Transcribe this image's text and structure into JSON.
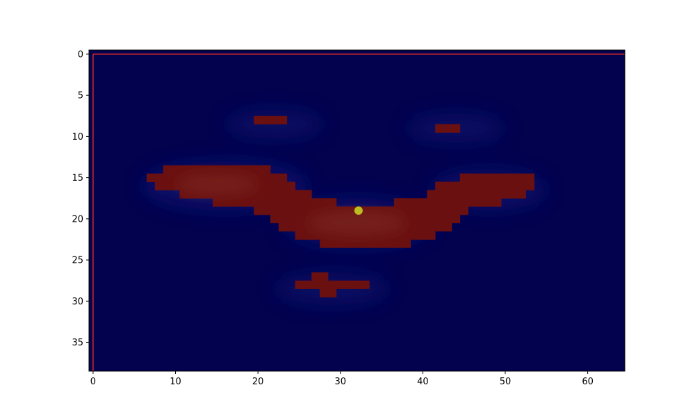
{
  "chart_data": {
    "type": "heatmap",
    "title": "",
    "xlabel": "",
    "ylabel": "",
    "xlim": [
      -0.5,
      64.5
    ],
    "ylim": [
      38.5,
      -0.5
    ],
    "y_axis_inverted": true,
    "grid": false,
    "x_ticks": [
      {
        "value": 0,
        "label": "0"
      },
      {
        "value": 10,
        "label": "10"
      },
      {
        "value": 20,
        "label": "20"
      },
      {
        "value": 30,
        "label": "30"
      },
      {
        "value": 40,
        "label": "40"
      },
      {
        "value": 50,
        "label": "50"
      },
      {
        "value": 60,
        "label": "60"
      }
    ],
    "y_ticks": [
      {
        "value": 0,
        "label": "0"
      },
      {
        "value": 5,
        "label": "5"
      },
      {
        "value": 10,
        "label": "10"
      },
      {
        "value": 15,
        "label": "15"
      },
      {
        "value": 20,
        "label": "20"
      },
      {
        "value": 25,
        "label": "25"
      },
      {
        "value": 30,
        "label": "30"
      },
      {
        "value": 35,
        "label": "35"
      }
    ],
    "background_color": "#02024f",
    "glow_color": "#1a2a9a",
    "mask_color": "#6b1010",
    "mask_runs": [
      {
        "row": 8,
        "x0": 20,
        "x1": 23
      },
      {
        "row": 9,
        "x0": 42,
        "x1": 44
      },
      {
        "row": 14,
        "x0": 9,
        "x1": 21
      },
      {
        "row": 15,
        "x0": 7,
        "x1": 23
      },
      {
        "row": 15,
        "x0": 45,
        "x1": 53
      },
      {
        "row": 16,
        "x0": 8,
        "x1": 24
      },
      {
        "row": 16,
        "x0": 42,
        "x1": 53
      },
      {
        "row": 17,
        "x0": 11,
        "x1": 26
      },
      {
        "row": 17,
        "x0": 41,
        "x1": 52
      },
      {
        "row": 18,
        "x0": 15,
        "x1": 29
      },
      {
        "row": 18,
        "x0": 37,
        "x1": 49
      },
      {
        "row": 19,
        "x0": 20,
        "x1": 45
      },
      {
        "row": 20,
        "x0": 22,
        "x1": 44
      },
      {
        "row": 21,
        "x0": 23,
        "x1": 43
      },
      {
        "row": 22,
        "x0": 25,
        "x1": 41
      },
      {
        "row": 23,
        "x0": 28,
        "x1": 38
      },
      {
        "row": 27,
        "x0": 27,
        "x1": 28
      },
      {
        "row": 28,
        "x0": 25,
        "x1": 33
      },
      {
        "row": 29,
        "x0": 28,
        "x1": 29
      }
    ],
    "glow_blobs": [
      {
        "cx": 16,
        "cy": 16,
        "rx": 10,
        "ry": 3,
        "opacity": 0.35
      },
      {
        "cx": 32,
        "cy": 20.5,
        "rx": 9,
        "ry": 3,
        "opacity": 0.35
      },
      {
        "cx": 48,
        "cy": 16.5,
        "rx": 7,
        "ry": 2.5,
        "opacity": 0.3
      },
      {
        "cx": 22,
        "cy": 8.5,
        "rx": 6,
        "ry": 1.8,
        "opacity": 0.25
      },
      {
        "cx": 44,
        "cy": 9,
        "rx": 6,
        "ry": 1.8,
        "opacity": 0.25
      },
      {
        "cx": 29,
        "cy": 28.5,
        "rx": 7,
        "ry": 2,
        "opacity": 0.25
      }
    ],
    "highlight_blobs": [
      {
        "cx": 15,
        "cy": 15.8,
        "rx": 5,
        "ry": 1.2
      },
      {
        "cx": 32,
        "cy": 20.5,
        "rx": 6,
        "ry": 1.5
      }
    ],
    "border_line": {
      "color": "#d62728",
      "x": 0,
      "y": 0
    },
    "point": {
      "x": 32.2,
      "y": 19,
      "color": "#bcbd22"
    }
  }
}
